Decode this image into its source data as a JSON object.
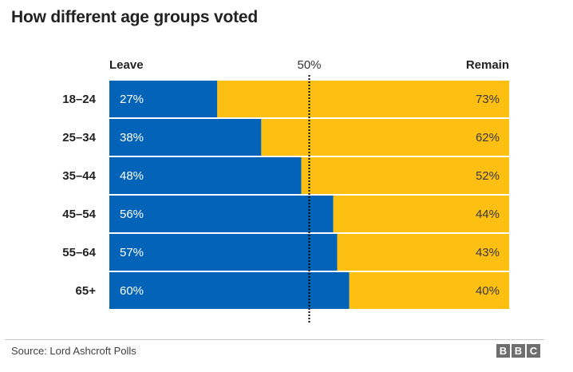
{
  "title": "How different age groups voted",
  "source": "Source: Lord Ashcroft Polls",
  "logo_letters": [
    "B",
    "B",
    "C"
  ],
  "colors": {
    "leave": "#0263b8",
    "remain": "#fcbf12",
    "text": "#222222",
    "label_light": "#ffffff",
    "midline": "#000000"
  },
  "chart_data": {
    "type": "bar",
    "orientation": "horizontal-stacked-100",
    "categories": [
      "18–24",
      "25–34",
      "35–44",
      "45–54",
      "55–64",
      "65+"
    ],
    "series": [
      {
        "name": "Leave",
        "values": [
          27,
          38,
          48,
          56,
          57,
          60
        ],
        "labels": [
          "27%",
          "38%",
          "48%",
          "56%",
          "57%",
          "60%"
        ]
      },
      {
        "name": "Remain",
        "values": [
          73,
          62,
          52,
          44,
          43,
          40
        ],
        "labels": [
          "73%",
          "62%",
          "52%",
          "44%",
          "43%",
          "40%"
        ]
      }
    ],
    "reference_line": {
      "value": 50,
      "label": "50%",
      "style": "dotted"
    },
    "xlim": [
      0,
      100
    ],
    "legend": "top-left and top-right",
    "grid": false
  }
}
